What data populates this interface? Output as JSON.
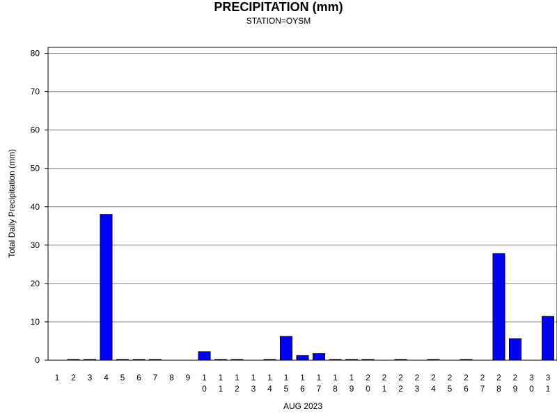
{
  "chart_data": {
    "type": "bar",
    "title": "PRECIPITATION (mm)",
    "subtitle": "STATION=OYSM",
    "xlabel": "AUG 2023",
    "ylabel": "Total Daily Precipitation (mm)",
    "ylim": [
      0,
      80
    ],
    "yticks": [
      0,
      10,
      20,
      30,
      40,
      50,
      60,
      70,
      80
    ],
    "grid": true,
    "categories": [
      "1",
      "2",
      "3",
      "4",
      "5",
      "6",
      "7",
      "8",
      "9",
      "10",
      "11",
      "12",
      "13",
      "14",
      "15",
      "16",
      "17",
      "18",
      "19",
      "20",
      "21",
      "22",
      "23",
      "24",
      "25",
      "26",
      "27",
      "28",
      "29",
      "30",
      "31"
    ],
    "values": [
      null,
      0,
      0,
      38,
      0,
      0,
      0,
      null,
      null,
      2.2,
      0,
      0,
      null,
      0,
      6.2,
      1.2,
      1.7,
      0,
      0,
      0,
      null,
      0,
      null,
      0,
      null,
      0,
      null,
      27.8,
      5.6,
      null,
      11.4
    ],
    "bar_color": "#0000ff"
  }
}
